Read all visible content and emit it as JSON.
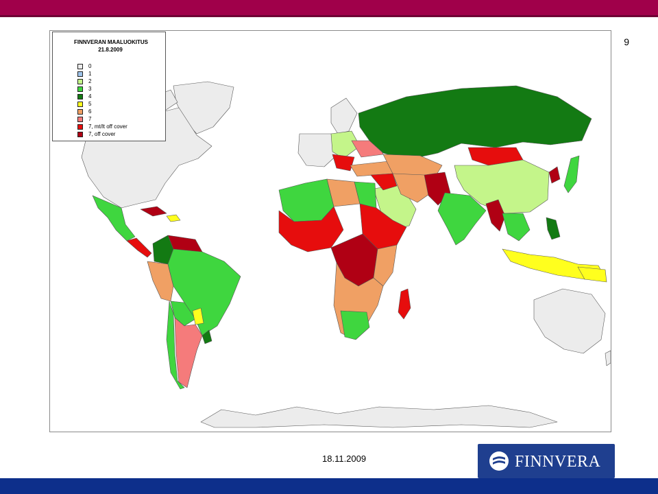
{
  "page_number": "9",
  "legend": {
    "title": "FINNVERAN MAALUOKITUS",
    "date": "21.8.2009",
    "items": [
      {
        "label": "0",
        "color": "#ececec"
      },
      {
        "label": "1",
        "color": "#9ec3ea"
      },
      {
        "label": "2",
        "color": "#c4f58a"
      },
      {
        "label": "3",
        "color": "#3fd63f"
      },
      {
        "label": "4",
        "color": "#137a13"
      },
      {
        "label": "5",
        "color": "#ffff1e"
      },
      {
        "label": "6",
        "color": "#f0a064"
      },
      {
        "label": "7",
        "color": "#f57b7b"
      },
      {
        "label": "7, mt/lt off cover",
        "color": "#e60d0d"
      },
      {
        "label": "7, off cover",
        "color": "#b00014"
      }
    ]
  },
  "footer": {
    "date": "18.11.2009",
    "logo_text": "FINNVERA"
  },
  "colors": {
    "top_bar": "#a0004a",
    "bottom_bar": "#0d2f8b",
    "logo_background": "#1f3f8f"
  }
}
